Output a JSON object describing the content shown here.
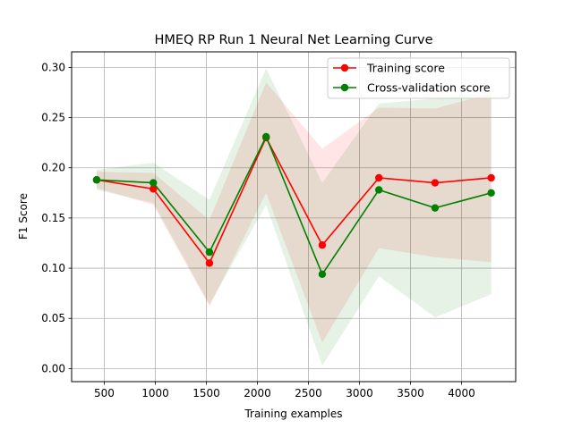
{
  "chart_data": {
    "type": "line",
    "title": "HMEQ RP Run 1 Neural Net Learning Curve",
    "xlabel": "Training examples",
    "ylabel": "F1 Score",
    "xlim": [
      180,
      4530
    ],
    "ylim": [
      -0.013,
      0.3155
    ],
    "xticks": [
      500,
      1000,
      1500,
      2000,
      2500,
      3000,
      3500,
      4000
    ],
    "yticks": [
      0.0,
      0.05,
      0.1,
      0.15,
      0.2,
      0.25,
      0.3
    ],
    "xtick_labels": [
      "500",
      "1000",
      "1500",
      "2000",
      "2500",
      "3000",
      "3500",
      "4000"
    ],
    "ytick_labels": [
      "0.00",
      "0.05",
      "0.10",
      "0.15",
      "0.20",
      "0.25",
      "0.30"
    ],
    "grid": true,
    "legend_position": "upper-right",
    "x": [
      425,
      980,
      1530,
      2085,
      2635,
      3190,
      3740,
      4290
    ],
    "series": [
      {
        "name": "Training score",
        "color": "#ff0000",
        "band_color": "#ff0000",
        "values": [
          0.188,
          0.179,
          0.105,
          0.23,
          0.123,
          0.19,
          0.185,
          0.19
        ],
        "band_upper": [
          0.196,
          0.195,
          0.148,
          0.285,
          0.219,
          0.26,
          0.259,
          0.274
        ],
        "band_lower": [
          0.18,
          0.163,
          0.062,
          0.175,
          0.026,
          0.12,
          0.111,
          0.106
        ]
      },
      {
        "name": "Cross-validation score",
        "color": "#008000",
        "band_color": "#008000",
        "values": [
          0.188,
          0.185,
          0.116,
          0.231,
          0.094,
          0.178,
          0.16,
          0.175
        ],
        "band_upper": [
          0.198,
          0.205,
          0.168,
          0.299,
          0.185,
          0.264,
          0.269,
          0.276
        ],
        "band_lower": [
          0.178,
          0.165,
          0.064,
          0.163,
          0.003,
          0.092,
          0.051,
          0.074
        ]
      }
    ]
  }
}
